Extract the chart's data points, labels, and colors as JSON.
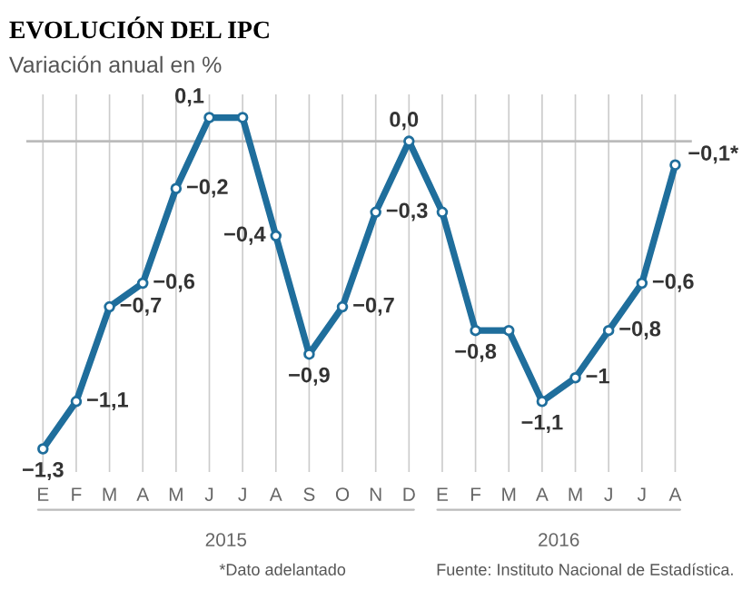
{
  "chart_data": {
    "type": "line",
    "title": "EVOLUCIÓN DEL IPC",
    "subtitle": "Variación anual en %",
    "categories": [
      "E",
      "F",
      "M",
      "A",
      "M",
      "J",
      "J",
      "A",
      "S",
      "O",
      "N",
      "D",
      "E",
      "F",
      "M",
      "A",
      "M",
      "J",
      "J",
      "A"
    ],
    "series": [
      {
        "color": "#1f6e9c",
        "values": [
          -1.3,
          -1.1,
          -0.7,
          -0.6,
          -0.2,
          0.1,
          0.1,
          -0.4,
          -0.9,
          -0.7,
          -0.3,
          0.0,
          -0.3,
          -0.8,
          -0.8,
          -1.1,
          -1,
          -0.8,
          -0.6,
          -0.1
        ],
        "value_labels": [
          "−1,3",
          "−1,1",
          "−0,7",
          "−0,6",
          "−0,2",
          "0,1",
          null,
          "−0,4",
          "−0,9",
          "−0,7",
          "−0,3",
          "0,0",
          null,
          "−0,8",
          null,
          "−1,1",
          "−1",
          "−0,8",
          "−0,6",
          "−0,1*"
        ]
      }
    ],
    "annotations": [
      "2015",
      "2016",
      "*Dato adelantado",
      "Fuente: Instituto Nacional de Estadística."
    ],
    "ref_lines": [
      {
        "axis": "y",
        "value": 0,
        "color": "#bbbbbb"
      }
    ],
    "grid": "x",
    "marker": "circle",
    "line_style": "solid",
    "legend": false
  }
}
